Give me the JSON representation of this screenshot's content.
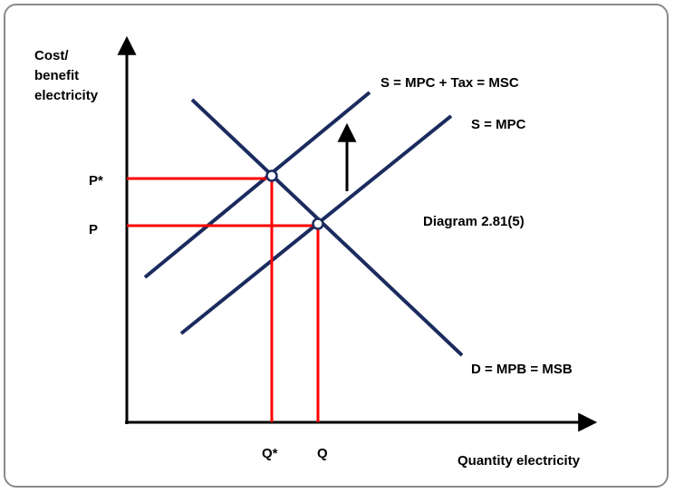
{
  "diagram": {
    "y_axis_label": [
      "Cost/",
      "benefit",
      "electricity"
    ],
    "x_axis_label": "Quantity electricity",
    "price_labels": {
      "p_star": "P*",
      "p": "P"
    },
    "quantity_labels": {
      "q_star": "Q*",
      "q": "Q"
    },
    "curves": {
      "msc": "S = MPC + Tax = MSC",
      "mpc": "S = MPC",
      "demand": "D = MPB = MSB"
    },
    "caption": "Diagram 2.81(5)",
    "colors": {
      "curve": "#1b2b5e",
      "guide": "#ff0000",
      "axis": "#000000",
      "frame": "#8a8a8a"
    }
  }
}
